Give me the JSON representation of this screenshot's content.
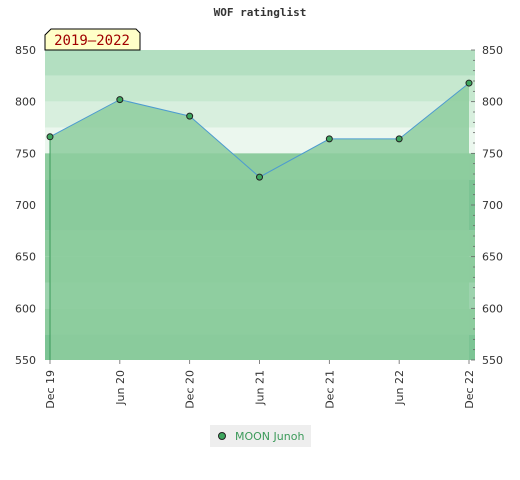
{
  "chart_data": {
    "type": "area",
    "title": "WOF ratinglist",
    "period_label": "2019–2022",
    "x": [
      "Dec 19",
      "Jun 20",
      "Dec 20",
      "Jun 21",
      "Dec 21",
      "Jun 22",
      "Dec 22"
    ],
    "y_ticks": [
      550,
      600,
      650,
      700,
      750,
      800,
      850
    ],
    "ylim": [
      550,
      850
    ],
    "series": [
      {
        "name": "MOON Junoh",
        "values": [
          766,
          802,
          786,
          727,
          764,
          764,
          818
        ]
      }
    ],
    "legend": "bottom-center",
    "grid": true,
    "colors": {
      "area": "#8dcc9e",
      "line": "#4d9bd0",
      "marker": "#3ea65e",
      "band_dark": "#7cc494",
      "band_mid": "#8dcc9e",
      "band_light": "#9dd3ae",
      "upper_1": "#b3dfc1",
      "upper_2": "#c6e8cf",
      "upper_3": "#d8efde",
      "upper_4": "#ebf7ee"
    }
  }
}
